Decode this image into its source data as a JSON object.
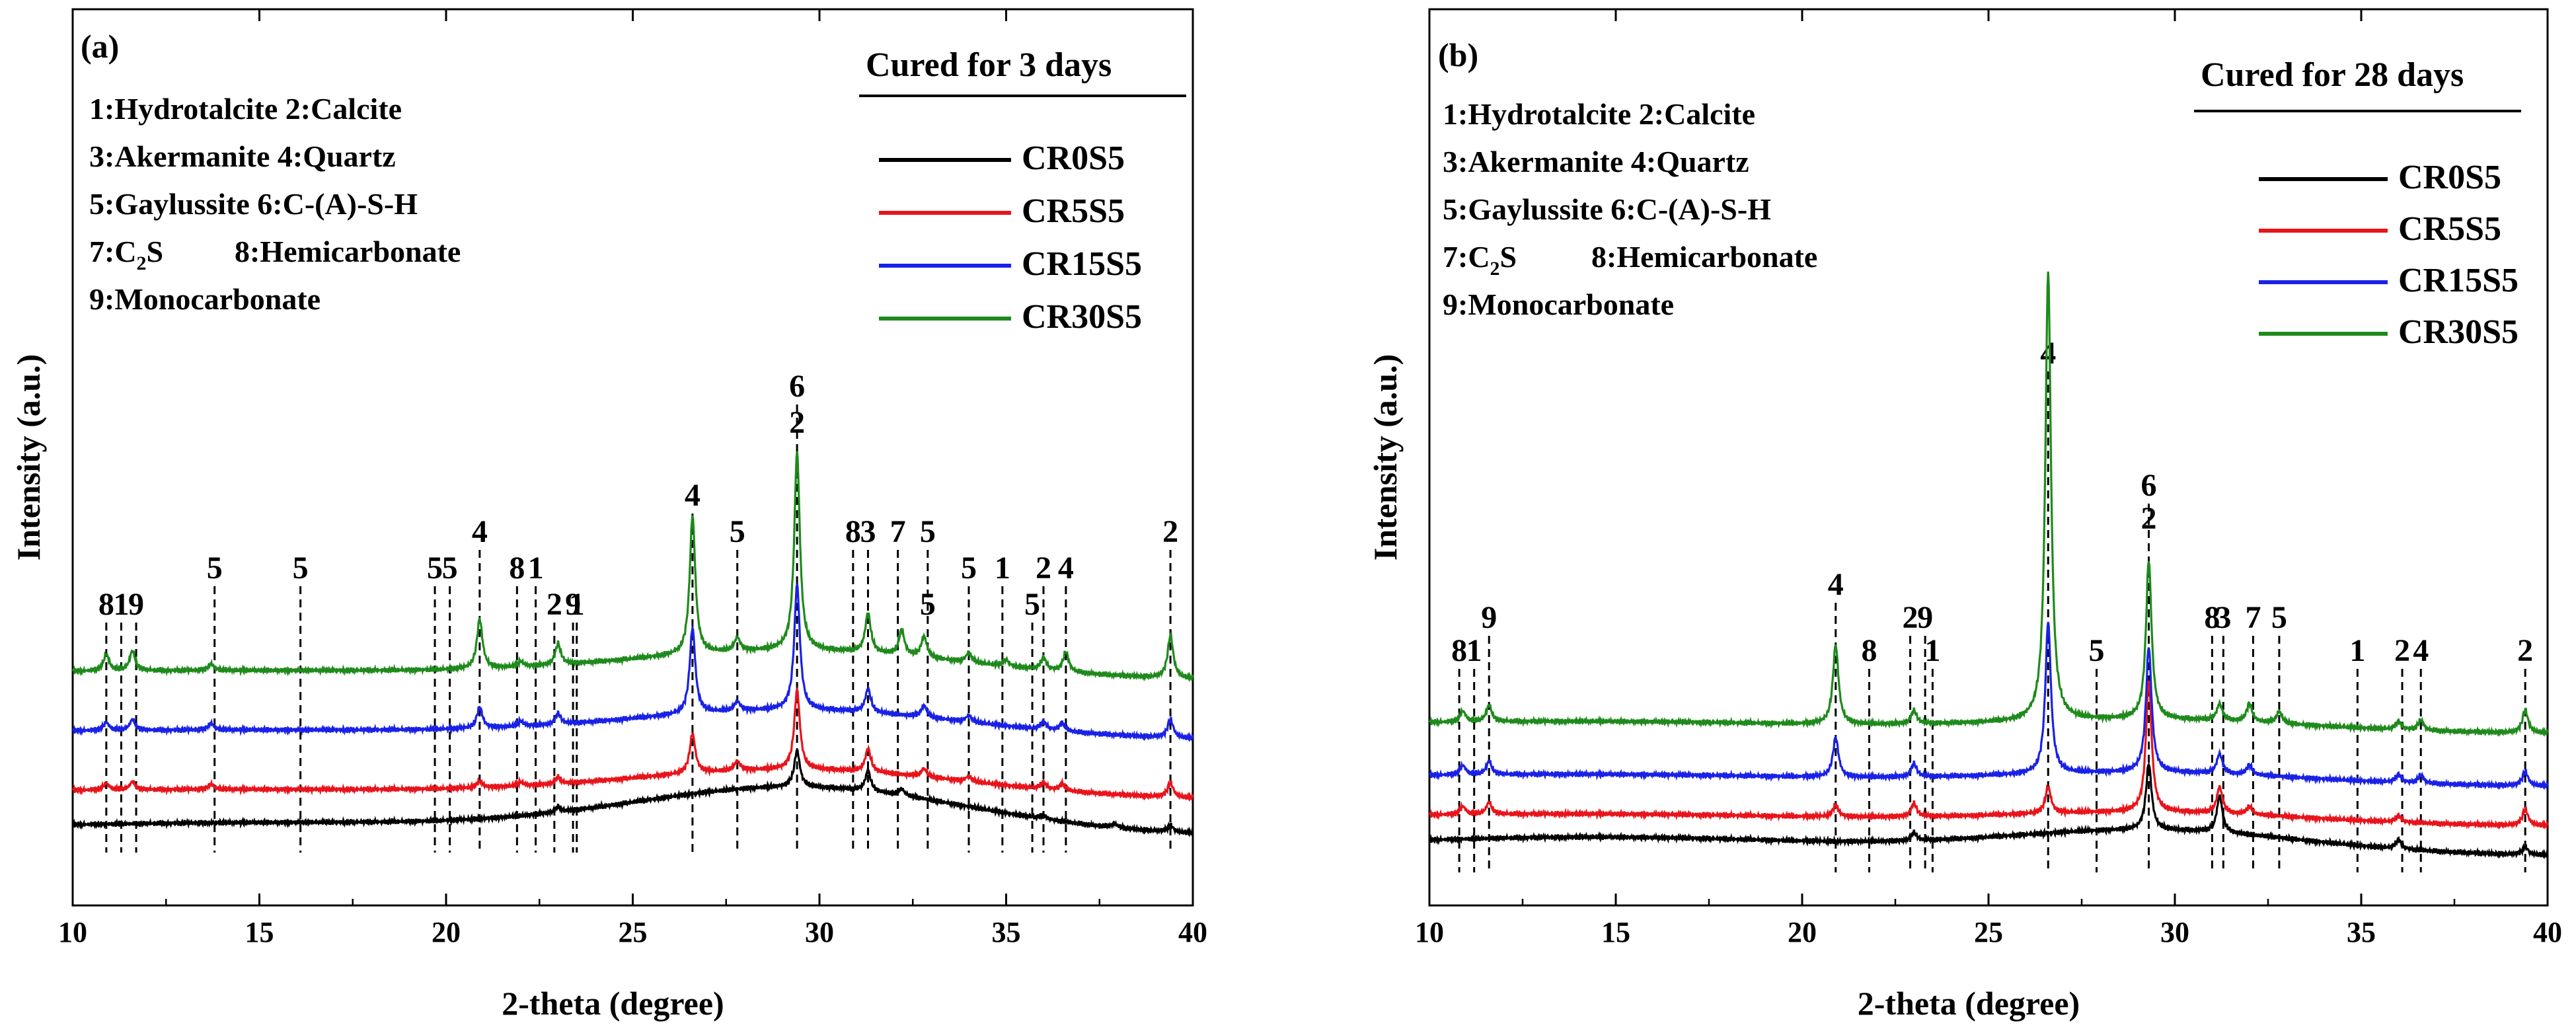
{
  "chart_data": [
    {
      "type": "line",
      "panel_label": "(a)",
      "title": "Cured for 3 days",
      "xlabel": "2-theta (degree)",
      "ylabel": "Intensity (a.u.)",
      "xlim": [
        10,
        40
      ],
      "xticks": [
        "10",
        "15",
        "20",
        "25",
        "30",
        "35",
        "40"
      ],
      "legend": [
        "CR0S5",
        "CR5S5",
        "CR15S5",
        "CR30S5"
      ],
      "phase_key": [
        "1:Hydrotalcite  2:Calcite",
        "3:Akermanite   4:Quartz",
        "5:Gaylussite  6:C-(A)-S-H",
        "8:Hemicarbonate",
        "9:Monocarbonate"
      ],
      "phase_key_c2s": {
        "prefix": "7:C",
        "sub": "2",
        "suffix": "S"
      },
      "series": [
        {
          "name": "CR0S5",
          "color": "#000000",
          "offset": 0,
          "hump": 1.0,
          "peaks": [
            [
              23.0,
              8
            ],
            [
              29.4,
              55
            ],
            [
              31.3,
              30
            ],
            [
              32.2,
              10
            ],
            [
              36.0,
              6
            ],
            [
              39.4,
              10
            ],
            [
              37.9,
              6
            ]
          ]
        },
        {
          "name": "CR5S5",
          "color": "#e8141b",
          "offset": 55,
          "hump": 0.6,
          "peaks": [
            [
              10.9,
              10
            ],
            [
              11.6,
              12
            ],
            [
              13.7,
              8
            ],
            [
              20.9,
              10
            ],
            [
              22.0,
              6
            ],
            [
              23.0,
              10
            ],
            [
              26.6,
              60
            ],
            [
              27.8,
              14
            ],
            [
              29.4,
              120
            ],
            [
              31.3,
              35
            ],
            [
              32.8,
              12
            ],
            [
              34.0,
              8
            ],
            [
              36.0,
              10
            ],
            [
              36.5,
              10
            ],
            [
              39.4,
              22
            ]
          ]
        },
        {
          "name": "CR15S5",
          "color": "#1a21e6",
          "offset": 145,
          "hump": 0.6,
          "peaks": [
            [
              10.9,
              12
            ],
            [
              11.6,
              16
            ],
            [
              13.7,
              10
            ],
            [
              20.9,
              32
            ],
            [
              22.0,
              8
            ],
            [
              23.0,
              16
            ],
            [
              26.6,
              130
            ],
            [
              27.8,
              14
            ],
            [
              29.4,
              190
            ],
            [
              31.3,
              35
            ],
            [
              32.8,
              18
            ],
            [
              34.0,
              10
            ],
            [
              36.0,
              12
            ],
            [
              36.5,
              12
            ],
            [
              39.4,
              28
            ]
          ]
        },
        {
          "name": "CR30S5",
          "color": "#1f8a1c",
          "offset": 235,
          "hump": 0.6,
          "peaks": [
            [
              10.9,
              25
            ],
            [
              11.6,
              30
            ],
            [
              13.7,
              10
            ],
            [
              20.9,
              75
            ],
            [
              22.0,
              8
            ],
            [
              23.0,
              32
            ],
            [
              26.6,
              210
            ],
            [
              27.8,
              20
            ],
            [
              29.4,
              300
            ],
            [
              31.3,
              60
            ],
            [
              32.2,
              38
            ],
            [
              32.8,
              32
            ],
            [
              34.0,
              15
            ],
            [
              35.0,
              10
            ],
            [
              36.0,
              18
            ],
            [
              36.6,
              30
            ],
            [
              39.4,
              65
            ]
          ]
        }
      ],
      "peak_labels": [
        {
          "x": 10.9,
          "text": "8",
          "level": 0
        },
        {
          "x": 11.3,
          "text": "1",
          "level": 0
        },
        {
          "x": 11.7,
          "text": "9",
          "level": 0
        },
        {
          "x": 13.8,
          "text": "5",
          "level": 1
        },
        {
          "x": 16.1,
          "text": "5",
          "level": 1
        },
        {
          "x": 19.7,
          "text": "5",
          "level": 1
        },
        {
          "x": 20.1,
          "text": "5",
          "level": 1
        },
        {
          "x": 20.9,
          "text": "4",
          "level": 2
        },
        {
          "x": 21.9,
          "text": "8",
          "level": 1
        },
        {
          "x": 22.4,
          "text": "1",
          "level": 1
        },
        {
          "x": 22.9,
          "text": "2",
          "level": 0
        },
        {
          "x": 23.4,
          "text": "9",
          "level": 0
        },
        {
          "x": 23.5,
          "text": "1",
          "level": 0
        },
        {
          "x": 26.6,
          "text": "4",
          "level": 3
        },
        {
          "x": 27.8,
          "text": "5",
          "level": 2
        },
        {
          "x": 29.4,
          "text": "6",
          "level": 6
        },
        {
          "x": 29.4,
          "text": "2",
          "level": 5
        },
        {
          "x": 30.9,
          "text": "8",
          "level": 2
        },
        {
          "x": 31.3,
          "text": "3",
          "level": 2
        },
        {
          "x": 32.1,
          "text": "7",
          "level": 2
        },
        {
          "x": 32.9,
          "text": "5",
          "level": 2
        },
        {
          "x": 32.9,
          "text": "5",
          "level": 0
        },
        {
          "x": 34.0,
          "text": "5",
          "level": 1
        },
        {
          "x": 34.9,
          "text": "1",
          "level": 1
        },
        {
          "x": 35.7,
          "text": "5",
          "level": 0
        },
        {
          "x": 36.0,
          "text": "2",
          "level": 1
        },
        {
          "x": 36.6,
          "text": "4",
          "level": 1
        },
        {
          "x": 39.4,
          "text": "2",
          "level": 2
        }
      ]
    },
    {
      "type": "line",
      "panel_label": "(b)",
      "title": "Cured for 28 days",
      "xlabel": "2-theta (degree)",
      "ylabel": "Intensity (a.u.)",
      "xlim": [
        10,
        40
      ],
      "xticks": [
        "10",
        "15",
        "20",
        "25",
        "30",
        "35",
        "40"
      ],
      "legend": [
        "CR0S5",
        "CR5S5",
        "CR15S5",
        "CR30S5"
      ],
      "phase_key": [
        "1:Hydrotalcite  2:Calcite",
        "3:Akermanite   4:Quartz",
        "5:Gaylussite  6:C-(A)-S-H",
        "8:Hemicarbonate",
        "9:Monocarbonate"
      ],
      "phase_key_c2s": {
        "prefix": "7:C",
        "sub": "2",
        "suffix": "S"
      },
      "series": [
        {
          "name": "CR0S5",
          "color": "#000000",
          "offset": 0,
          "hump": 1.0,
          "peaks": [
            [
              23.0,
              12
            ],
            [
              29.3,
              100
            ],
            [
              31.2,
              55
            ],
            [
              36.0,
              14
            ],
            [
              39.4,
              12
            ]
          ]
        },
        {
          "name": "CR5S5",
          "color": "#e8141b",
          "offset": 45,
          "hump": 0.5,
          "peaks": [
            [
              10.9,
              12
            ],
            [
              11.6,
              18
            ],
            [
              20.9,
              18
            ],
            [
              23.0,
              20
            ],
            [
              26.6,
              40
            ],
            [
              29.3,
              200
            ],
            [
              31.2,
              40
            ],
            [
              32.0,
              12
            ],
            [
              36.0,
              10
            ],
            [
              39.4,
              25
            ]
          ]
        },
        {
          "name": "CR15S5",
          "color": "#1a21e6",
          "offset": 105,
          "hump": 0.5,
          "peaks": [
            [
              10.9,
              14
            ],
            [
              11.6,
              20
            ],
            [
              20.9,
              60
            ],
            [
              23.0,
              20
            ],
            [
              26.6,
              230
            ],
            [
              29.3,
              190
            ],
            [
              31.2,
              30
            ],
            [
              32.0,
              15
            ],
            [
              36.0,
              12
            ],
            [
              36.6,
              12
            ],
            [
              39.4,
              22
            ]
          ]
        },
        {
          "name": "CR30S5",
          "color": "#1f8a1c",
          "offset": 185,
          "hump": 0.5,
          "peaks": [
            [
              10.9,
              16
            ],
            [
              11.6,
              25
            ],
            [
              20.9,
              120
            ],
            [
              23.0,
              20
            ],
            [
              26.6,
              680
            ],
            [
              29.3,
              240
            ],
            [
              31.2,
              25
            ],
            [
              32.0,
              28
            ],
            [
              32.8,
              18
            ],
            [
              36.0,
              12
            ],
            [
              36.6,
              15
            ],
            [
              39.4,
              35
            ]
          ]
        }
      ],
      "peak_labels": [
        {
          "x": 10.8,
          "text": "8",
          "level": 0
        },
        {
          "x": 11.2,
          "text": "1",
          "level": 0
        },
        {
          "x": 11.6,
          "text": "9",
          "level": 1
        },
        {
          "x": 20.9,
          "text": "4",
          "level": 2
        },
        {
          "x": 21.8,
          "text": "8",
          "level": 0
        },
        {
          "x": 22.9,
          "text": "2",
          "level": 1
        },
        {
          "x": 23.3,
          "text": "9",
          "level": 1
        },
        {
          "x": 23.5,
          "text": "1",
          "level": 0
        },
        {
          "x": 26.6,
          "text": "4",
          "level": 9
        },
        {
          "x": 27.9,
          "text": "5",
          "level": 0
        },
        {
          "x": 29.3,
          "text": "6",
          "level": 5
        },
        {
          "x": 29.3,
          "text": "2",
          "level": 4
        },
        {
          "x": 31.0,
          "text": "8",
          "level": 1
        },
        {
          "x": 31.3,
          "text": "3",
          "level": 1
        },
        {
          "x": 32.1,
          "text": "7",
          "level": 1
        },
        {
          "x": 32.8,
          "text": "5",
          "level": 1
        },
        {
          "x": 34.9,
          "text": "1",
          "level": 0
        },
        {
          "x": 36.1,
          "text": "2",
          "level": 0
        },
        {
          "x": 36.6,
          "text": "4",
          "level": 0
        },
        {
          "x": 39.4,
          "text": "2",
          "level": 0
        }
      ]
    }
  ]
}
